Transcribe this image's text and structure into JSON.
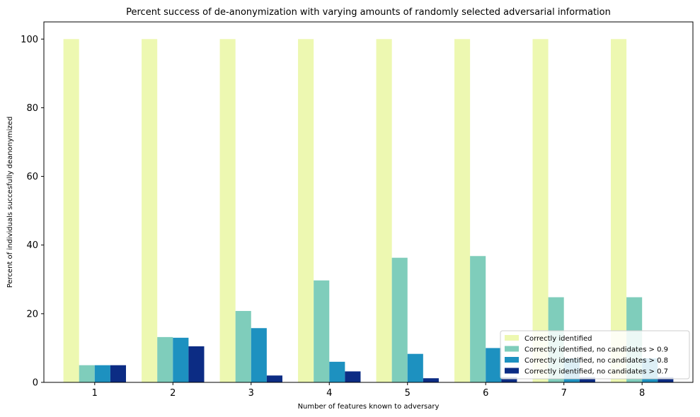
{
  "chart_data": {
    "type": "bar",
    "title": "Percent success of de-anonymization with varying amounts of randomly selected adversarial information",
    "xlabel": "Number of features known to adversary",
    "ylabel": "Percent of individuals succesfully deanonymized",
    "categories": [
      "1",
      "2",
      "3",
      "4",
      "5",
      "6",
      "7",
      "8"
    ],
    "ylim": [
      0,
      105
    ],
    "yticks": [
      0,
      20,
      40,
      60,
      80,
      100
    ],
    "grid": false,
    "legend_position": "lower-right",
    "series": [
      {
        "name": "Correctly identified",
        "color": "#edf8b1",
        "values": [
          100,
          100,
          100,
          100,
          100,
          100,
          100,
          100
        ]
      },
      {
        "name": "Correctly identified, no candidates > 0.9",
        "color": "#7fcdbb",
        "values": [
          5,
          13.2,
          20.8,
          29.7,
          36.3,
          36.8,
          24.8,
          24.8
        ]
      },
      {
        "name": "Correctly identified, no candidates > 0.8",
        "color": "#1d91c0",
        "values": [
          5,
          13,
          15.8,
          6,
          8.3,
          10,
          7,
          7
        ]
      },
      {
        "name": "Correctly identified, no candidates > 0.7",
        "color": "#0c2c84",
        "values": [
          5,
          10.5,
          2,
          3.2,
          1.2,
          1.5,
          1.5,
          1.5
        ]
      }
    ]
  }
}
